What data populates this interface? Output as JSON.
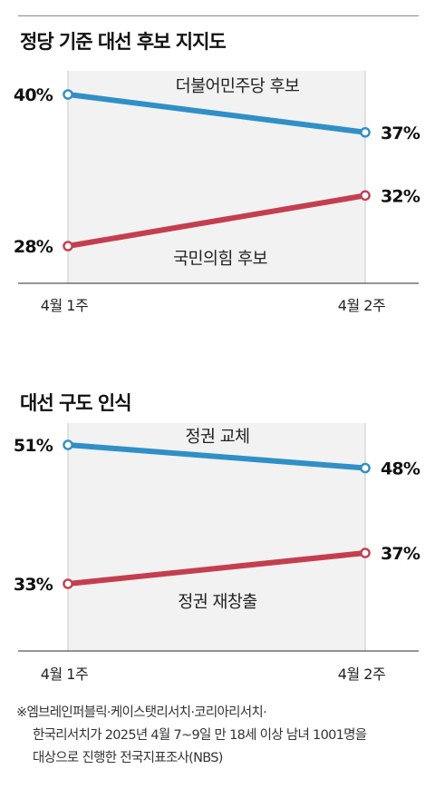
{
  "chart_data": [
    {
      "type": "line",
      "title": "정당 기준 대선 후보 지지도",
      "categories": [
        "4월 1주",
        "4월 2주"
      ],
      "series": [
        {
          "name": "더불어민주당 후보",
          "values": [
            40,
            37
          ],
          "labels": [
            "40%",
            "37%"
          ],
          "color": "#2f8fc6"
        },
        {
          "name": "국민의힘 후보",
          "values": [
            28,
            32
          ],
          "labels": [
            "28%",
            "32%"
          ],
          "color": "#c43e50"
        }
      ],
      "xlabel": "",
      "ylabel": ""
    },
    {
      "type": "line",
      "title": "대선 구도 인식",
      "categories": [
        "4월 1주",
        "4월 2주"
      ],
      "series": [
        {
          "name": "정권 교체",
          "values": [
            51,
            48
          ],
          "labels": [
            "51%",
            "48%"
          ],
          "color": "#2f8fc6"
        },
        {
          "name": "정권 재창출",
          "values": [
            33,
            37
          ],
          "labels": [
            "33%",
            "37%"
          ],
          "color": "#c43e50"
        }
      ],
      "xlabel": "",
      "ylabel": ""
    }
  ],
  "footnote": {
    "line1": "※엠브레인퍼블릭·케이스탯리서치·코리아리서치·",
    "line2": "한국리서치가 2025년 4월 7~9일 만 18세 이상 남녀 1001명을",
    "line3": "대상으로 진행한 전국지표조사(NBS)"
  }
}
